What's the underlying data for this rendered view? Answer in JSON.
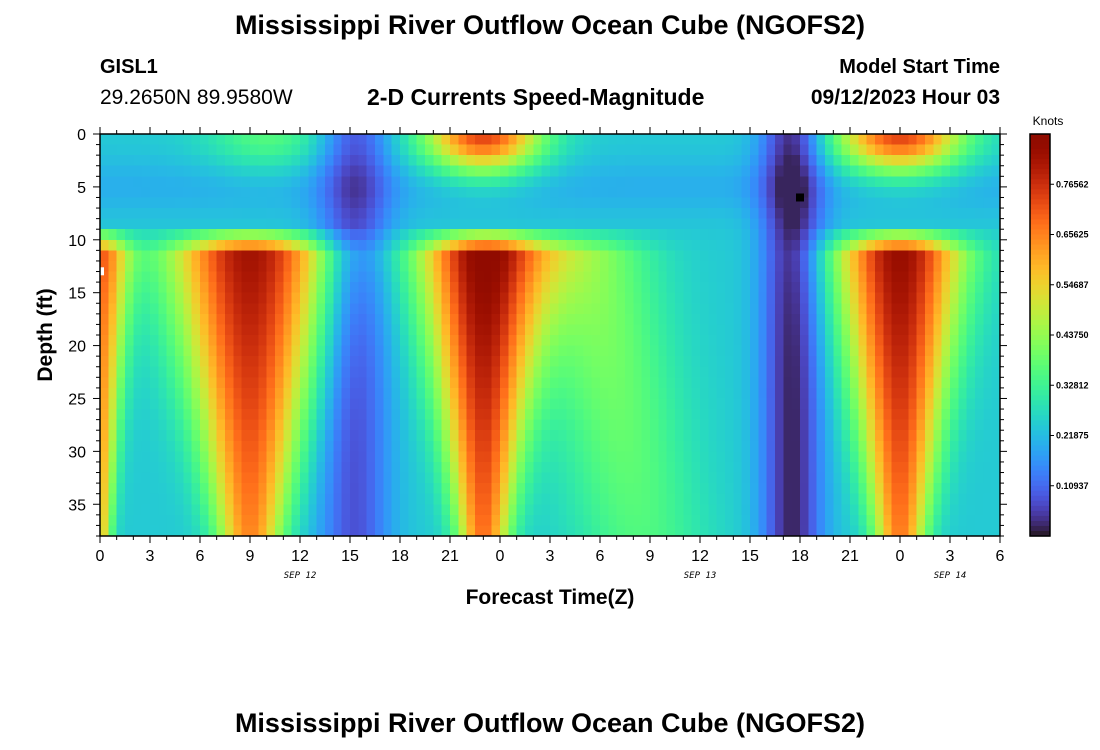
{
  "header": {
    "title": "Mississippi River Outflow Ocean Cube (NGOFS2)",
    "station_id": "GISL1",
    "station_coords": "29.2650N  89.9580W",
    "subtitle": "2-D Currents Speed-Magnitude",
    "model_start_label": "Model Start Time",
    "model_start_value": "09/12/2023 Hour 03"
  },
  "footer": {
    "title": "Mississippi River Outflow Ocean Cube (NGOFS2)"
  },
  "chart_data": {
    "type": "heatmap",
    "title": "2-D Currents Speed-Magnitude",
    "xlabel": "Forecast Time(Z)",
    "ylabel": "Depth (ft)",
    "colorbar_label": "Knots",
    "colormap": "turbo",
    "colorbar_range": [
      0.0,
      0.875
    ],
    "colorbar_ticks": [
      "0.76562",
      "0.65625",
      "0.54687",
      "0.43750",
      "0.32812",
      "0.21875",
      "0.10937"
    ],
    "colorbar_tick_values": [
      0.76562,
      0.65625,
      0.54687,
      0.4375,
      0.32812,
      0.21875,
      0.10937
    ],
    "x_range_hours": [
      0,
      54
    ],
    "x_tick_labels": [
      "0",
      "3",
      "6",
      "9",
      "12",
      "15",
      "18",
      "21",
      "0",
      "3",
      "6",
      "9",
      "12",
      "15",
      "18",
      "21",
      "0",
      "3",
      "6"
    ],
    "date_labels": [
      {
        "label": "SEP 12",
        "hour": 12
      },
      {
        "label": "SEP 13",
        "hour": 36
      },
      {
        "label": "SEP 14",
        "hour": 51
      }
    ],
    "y_range_ft": [
      0,
      38
    ],
    "y_inverted": true,
    "y_tick_labels": [
      "0",
      "5",
      "10",
      "15",
      "20",
      "25",
      "30",
      "35"
    ],
    "y_tick_values": [
      0,
      5,
      10,
      15,
      20,
      25,
      30,
      35
    ],
    "current_time_marker_hour": 42,
    "current_time_marker_depth": 6,
    "pattern_description": "speed peaks near 0.8 kt at depth 12-30 ft around hours 9, 23, 48; surface peaks near 0.7 kt at hours 23 and 48; minima near 0.05 kt at hours 15 and 42"
  }
}
